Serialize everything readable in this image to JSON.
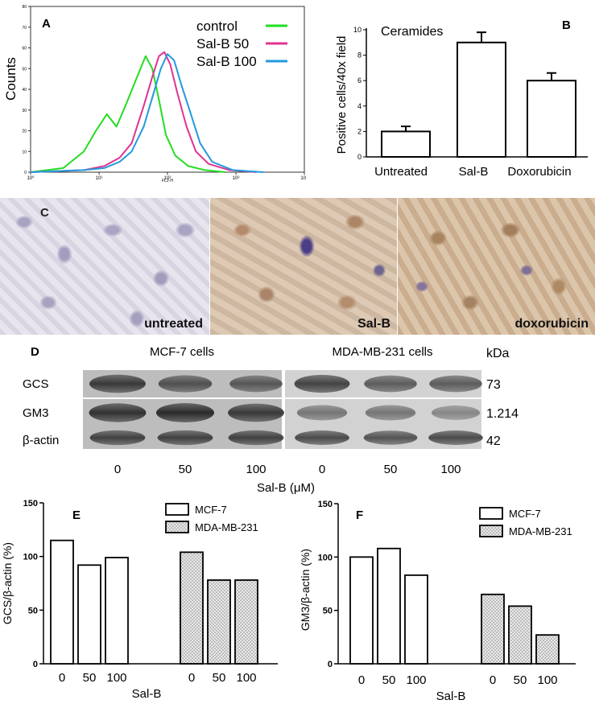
{
  "panel_a": {
    "letter": "A",
    "chart_data": {
      "type": "line",
      "ylabel": "Counts",
      "xlabel": "FL2-H",
      "x_scale": "log",
      "xlim": [
        1,
        10000
      ],
      "ylim": [
        0,
        80
      ],
      "x_tick_labels": [
        "10⁰",
        "10¹",
        "10²",
        "10³",
        "10⁴"
      ],
      "y_tick_labels": [
        "0",
        "10",
        "20",
        "30",
        "40",
        "50",
        "60",
        "70",
        "80"
      ],
      "series": [
        {
          "name": "control",
          "color": "#22dd22",
          "x": [
            1,
            3,
            6,
            9,
            13,
            18,
            25,
            35,
            48,
            60,
            75,
            95,
            130,
            200,
            350,
            700
          ],
          "y": [
            0,
            2,
            10,
            20,
            28,
            22,
            33,
            45,
            56,
            50,
            35,
            18,
            8,
            3,
            1,
            0
          ]
        },
        {
          "name": "Sal-B 50",
          "color": "#e0338f",
          "x": [
            1,
            6,
            12,
            20,
            30,
            45,
            60,
            75,
            90,
            110,
            140,
            190,
            260,
            400,
            800,
            2000
          ],
          "y": [
            0,
            1,
            3,
            7,
            14,
            32,
            46,
            56,
            58,
            52,
            38,
            22,
            10,
            4,
            1,
            0
          ]
        },
        {
          "name": "Sal-B 100",
          "color": "#2299dd",
          "x": [
            1,
            6,
            12,
            20,
            30,
            45,
            60,
            80,
            100,
            125,
            160,
            220,
            300,
            450,
            900,
            2500
          ],
          "y": [
            0,
            1,
            2,
            5,
            10,
            22,
            36,
            50,
            57,
            54,
            42,
            28,
            14,
            5,
            1,
            0
          ]
        }
      ]
    }
  },
  "panel_b": {
    "letter": "B",
    "chart_data": {
      "type": "bar",
      "title": "Ceramides",
      "ylabel": "Positive cells/40x field",
      "categories": [
        "Untreated",
        "Sal-B",
        "Doxorubicin"
      ],
      "values": [
        2,
        9,
        6
      ],
      "errors": [
        0.4,
        0.8,
        0.6
      ],
      "ylim": [
        0,
        10
      ],
      "y_tick_labels": [
        "0",
        "2",
        "4",
        "6",
        "8",
        "10"
      ]
    }
  },
  "panel_c": {
    "letter": "C",
    "images": [
      {
        "label": "untreated"
      },
      {
        "label": "Sal-B"
      },
      {
        "label": "doxorubicin"
      }
    ]
  },
  "panel_d": {
    "letter": "D",
    "groups": [
      "MCF-7 cells",
      "MDA-MB-231 cells"
    ],
    "unit_label": "kDa",
    "rows": [
      {
        "name": "GCS",
        "kda": "73"
      },
      {
        "name": "GM3",
        "kda": "1.214"
      },
      {
        "name": "β-actin",
        "kda": "42"
      }
    ],
    "lanes": [
      "0",
      "50",
      "100",
      "0",
      "50",
      "100"
    ],
    "xlabel": "Sal-B (μM)"
  },
  "panel_e": {
    "letter": "E",
    "chart_data": {
      "type": "bar",
      "ylabel": "GCS/β-actin (%)",
      "xlabel": "Sal-B",
      "ylim": [
        0,
        150
      ],
      "y_tick_labels": [
        "0",
        "50",
        "100",
        "150"
      ],
      "categories": [
        "0",
        "50",
        "100"
      ],
      "series": [
        {
          "name": "MCF-7",
          "values": [
            115,
            92,
            99
          ]
        },
        {
          "name": "MDA-MB-231",
          "values": [
            104,
            78,
            78
          ]
        }
      ]
    }
  },
  "panel_f": {
    "letter": "F",
    "chart_data": {
      "type": "bar",
      "ylabel": "GM3/β-actin (%)",
      "xlabel": "Sal-B",
      "ylim": [
        0,
        150
      ],
      "y_tick_labels": [
        "0",
        "50",
        "100",
        "150"
      ],
      "categories": [
        "0",
        "50",
        "100"
      ],
      "series": [
        {
          "name": "MCF-7",
          "values": [
            100,
            108,
            83
          ]
        },
        {
          "name": "MDA-MB-231",
          "values": [
            65,
            54,
            27
          ]
        }
      ]
    }
  }
}
